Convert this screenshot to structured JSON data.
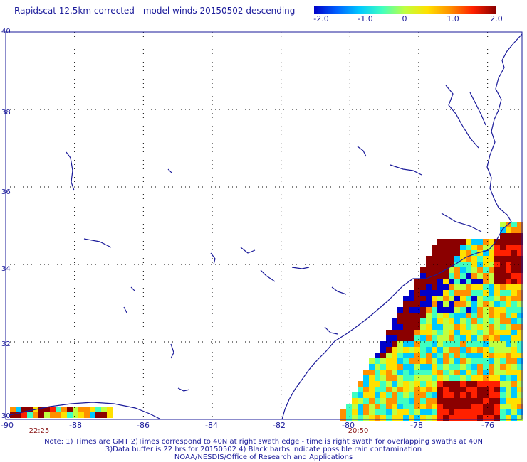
{
  "title": "Rapidscat 12.5km corrected - model winds 20150502 descending",
  "colorbar": {
    "ticks": [
      "-2.0",
      "-1.0",
      "0",
      "1.0",
      "2.0"
    ],
    "tick_values": [
      -2.0,
      -1.0,
      0,
      1.0,
      2.0
    ],
    "colors": [
      "#0000c8",
      "#0060ff",
      "#00c8ff",
      "#40ffc0",
      "#c0ff40",
      "#ffe000",
      "#ff9000",
      "#ff2000",
      "#8b0000"
    ]
  },
  "chart_data": {
    "type": "heatmap",
    "xlim": [
      -90,
      -75
    ],
    "ylim": [
      30,
      40
    ],
    "x_ticks": [
      "-90",
      "-88",
      "-86",
      "-84",
      "-82",
      "-80",
      "-78",
      "-76"
    ],
    "y_ticks": [
      "40",
      "38",
      "36",
      "34",
      "32",
      "30"
    ],
    "color_range": [
      -2.0,
      2.0
    ],
    "grid": true
  },
  "time_labels": [
    "22:25",
    "20:50"
  ],
  "notes": [
    "Note: 1) Times are GMT 2)Times correspond to 40N at right swath edge - time is right swath for overlapping swaths at 40N",
    "3)Data buffer is 22 hrs for 20150502 4) Black barbs indicate possible rain contamination",
    "NOAA/NESDIS/Office of Research and Applications"
  ]
}
